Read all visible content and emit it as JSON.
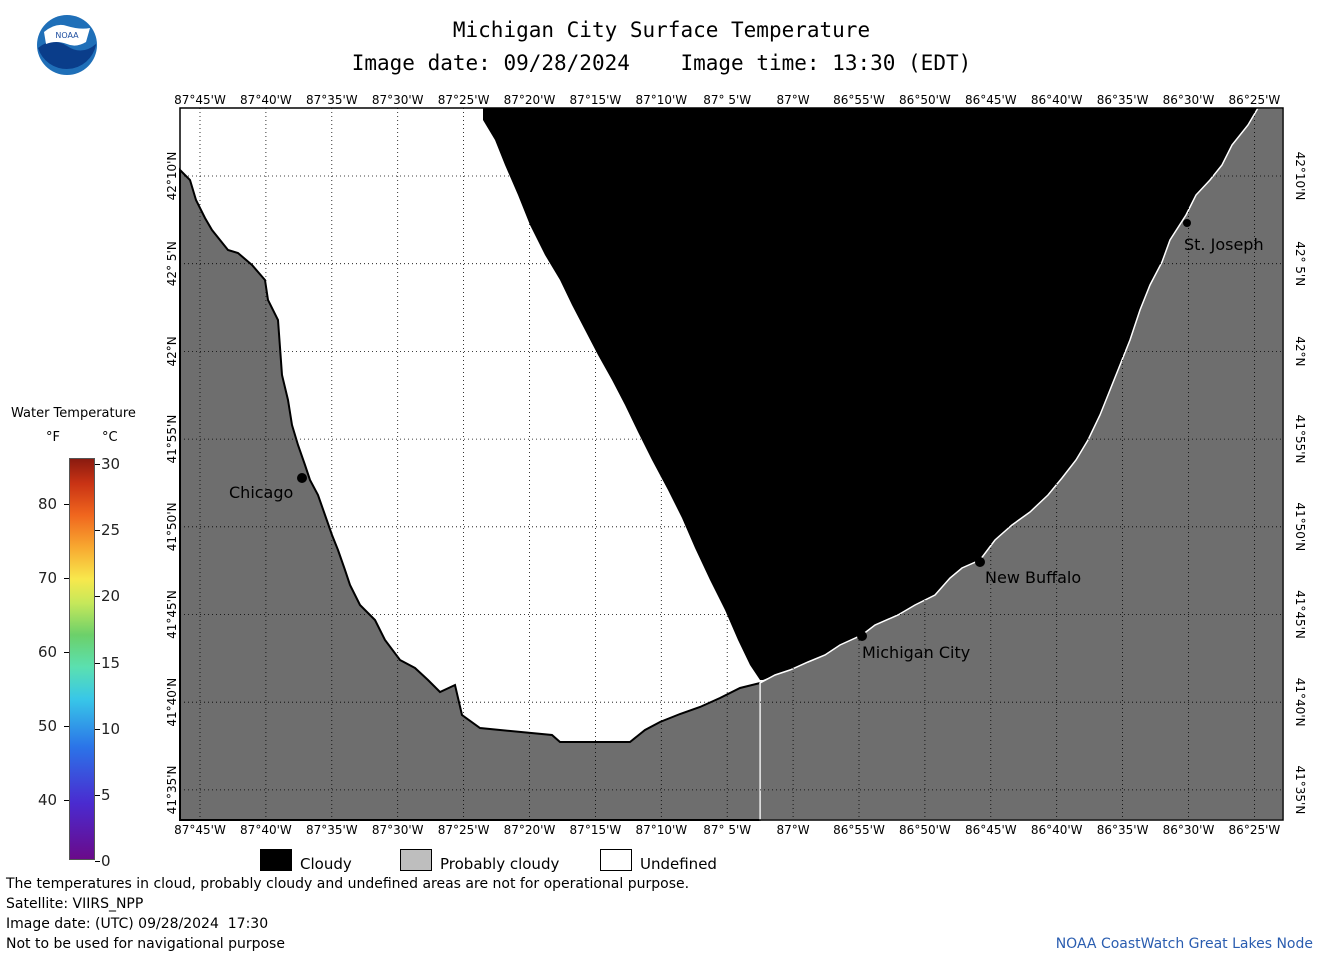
{
  "header": {
    "title": "Michigan City Surface Temperature",
    "image_date": "Image date: 09/28/2024",
    "image_time": "Image time: 13:30 (EDT)"
  },
  "logo": {
    "text": "NOAA",
    "icon": "noaa-logo"
  },
  "map": {
    "lon_labels": [
      "87°45'W",
      "87°40'W",
      "87°35'W",
      "87°30'W",
      "87°25'W",
      "87°20'W",
      "87°15'W",
      "87°10'W",
      "87° 5'W",
      "87°W",
      "86°55'W",
      "86°50'W",
      "86°45'W",
      "86°40'W",
      "86°35'W",
      "86°30'W",
      "86°25'W"
    ],
    "lat_labels": [
      "42°10'N",
      "42° 5'N",
      "42°N",
      "41°55'N",
      "41°50'N",
      "41°45'N",
      "41°40'N",
      "41°35'N"
    ],
    "cities": [
      {
        "name": "Chicago"
      },
      {
        "name": "New Buffalo"
      },
      {
        "name": "Michigan City"
      },
      {
        "name": "St. Joseph"
      }
    ],
    "colors": {
      "land": "#6e6e6e",
      "cloudy": "#000000",
      "probably_cloudy": "#bebebe",
      "undefined": "#ffffff"
    }
  },
  "colorbar": {
    "title": "Water Temperature",
    "unit_f": "°F",
    "unit_c": "°C",
    "f_ticks": [
      "80",
      "70",
      "60",
      "50",
      "40"
    ],
    "c_ticks": [
      "30",
      "25",
      "20",
      "15",
      "10",
      "5",
      "0"
    ]
  },
  "legend": {
    "cloudy": "Cloudy",
    "probably_cloudy": "Probably cloudy",
    "undefined": "Undefined"
  },
  "notes": {
    "line1": "The temperatures in cloud, probably cloudy and undefined areas are not for operational purpose.",
    "line2": "Satellite: VIIRS_NPP",
    "line3": "Image date: (UTC) 09/28/2024  17:30",
    "line4": "Not to be used for navigational purpose"
  },
  "credit": "NOAA CoastWatch Great Lakes Node"
}
